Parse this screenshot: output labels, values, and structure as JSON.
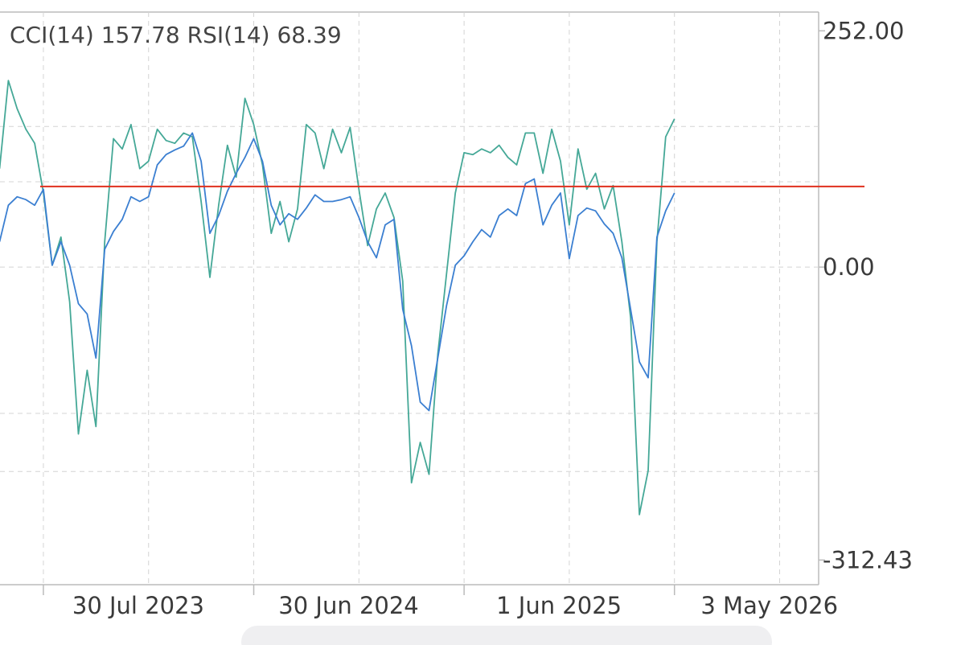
{
  "chart_data": {
    "type": "line",
    "title": "CCI(14) 157.78 RSI(14) 68.39",
    "x": [
      -10,
      -8,
      -6,
      -4,
      -2,
      0,
      2,
      4,
      6,
      8,
      10,
      12,
      14,
      16,
      18,
      20,
      22,
      24,
      26,
      28,
      30,
      32,
      34,
      36,
      38,
      40,
      42,
      44,
      46,
      48,
      50,
      52,
      54,
      56,
      58,
      60,
      62,
      64,
      66,
      68,
      70,
      72,
      74,
      76,
      78,
      80,
      82,
      84,
      86,
      88,
      90,
      92,
      94,
      96,
      98,
      100,
      102,
      104,
      106,
      108,
      110,
      112,
      114,
      116,
      118,
      120,
      122,
      124,
      126,
      128,
      130,
      132,
      134,
      136,
      138,
      140,
      142,
      144
    ],
    "series": [
      {
        "color": "#45a897",
        "values": [
          105,
          199,
          169,
          147,
          132,
          79,
          2,
          32,
          -37,
          -178,
          -110,
          -170,
          27,
          137,
          126,
          152,
          105,
          113,
          147,
          135,
          132,
          143,
          139,
          70,
          -11,
          66,
          130,
          96,
          180,
          152,
          109,
          36,
          70,
          27,
          62,
          152,
          143,
          105,
          147,
          122,
          149,
          83,
          23,
          62,
          79,
          53,
          -15,
          -230,
          -187,
          -221,
          -93,
          -7,
          79,
          122,
          120,
          126,
          122,
          130,
          117,
          109,
          143,
          143,
          100,
          147,
          113,
          45,
          126,
          83,
          100,
          62,
          87,
          27,
          -54,
          -264,
          -217,
          27,
          139,
          158
        ]
      },
      {
        "color": "#3b7fd1",
        "values": [
          27,
          66,
          75,
          72,
          66,
          83,
          2,
          27,
          2,
          -39,
          -50,
          -97,
          19,
          38,
          51,
          75,
          70,
          75,
          109,
          120,
          125,
          129,
          143,
          113,
          36,
          55,
          81,
          100,
          117,
          137,
          113,
          66,
          45,
          57,
          51,
          63,
          77,
          70,
          70,
          72,
          75,
          53,
          27,
          10,
          45,
          51,
          -45,
          -84,
          -144,
          -153,
          -97,
          -41,
          2,
          12,
          27,
          40,
          32,
          55,
          62,
          55,
          89,
          94,
          45,
          66,
          79,
          9,
          55,
          63,
          60,
          46,
          36,
          10,
          -45,
          -101,
          -118,
          32,
          60,
          79
        ]
      }
    ],
    "reference_line": {
      "value": 86,
      "color": "#e0301e"
    },
    "xlim": [
      -9.9,
      176.9
    ],
    "xticks": [
      {
        "value": 0,
        "label": "30 Jul 2023"
      },
      {
        "value": 48,
        "label": "30 Jun 2024"
      },
      {
        "value": 96,
        "label": "1 Jun 2025"
      },
      {
        "value": 144,
        "label": "3 May 2026"
      }
    ],
    "xgrid": [
      0,
      24,
      48,
      72,
      96,
      120,
      144,
      168
    ],
    "ylim": [
      -337,
      272
    ],
    "yticks": [
      {
        "value": 252,
        "label": "252.00"
      },
      {
        "value": 0,
        "label": "0.00"
      },
      {
        "value": -312.43,
        "label": "-312.43"
      }
    ],
    "ygrid": [
      150,
      91,
      0,
      -156,
      -218
    ],
    "grid": true
  }
}
